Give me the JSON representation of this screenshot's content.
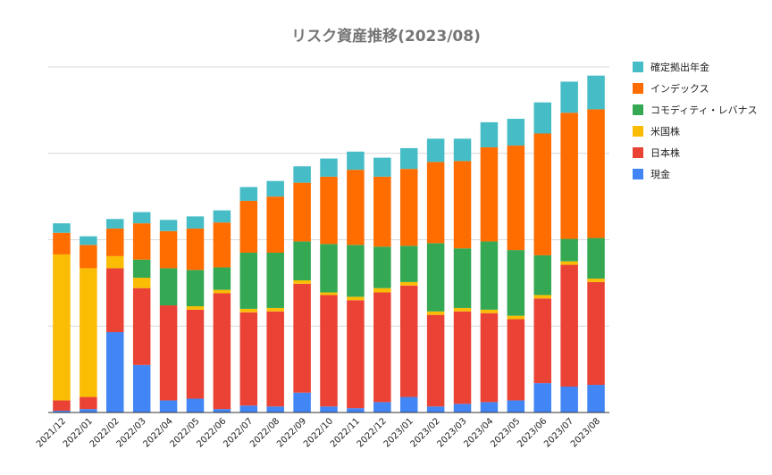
{
  "colors": {
    "確定拠出年金": "#46bdc6",
    "インデックス": "#ff6d01",
    "コモディティ・レバナス": "#34a853",
    "米国株": "#fbbc04",
    "日本株": "#ea4335",
    "現金": "#4285f4"
  },
  "chart_data": {
    "type": "bar",
    "stacked": true,
    "title": "リスク資産推移(2023/08)",
    "xlabel": "",
    "ylabel": "",
    "ylim": [
      0,
      400
    ],
    "y_gridlines": [
      100,
      200,
      300,
      400
    ],
    "y_tick_labels_shown": false,
    "grid": true,
    "legend_position": "right",
    "categories": [
      "2021/12",
      "2022/01",
      "2022/02",
      "2022/03",
      "2022/04",
      "2022/05",
      "2022/06",
      "2022/07",
      "2022/08",
      "2022/09",
      "2022/10",
      "2022/11",
      "2022/12",
      "2023/01",
      "2023/02",
      "2023/03",
      "2023/04",
      "2023/05",
      "2023/06",
      "2023/07",
      "2023/08"
    ],
    "series": [
      {
        "name": "現金",
        "values": [
          2,
          4,
          93,
          55,
          14,
          16,
          4,
          8,
          7,
          23,
          7,
          5,
          12,
          18,
          7,
          10,
          12,
          14,
          34,
          30,
          32
        ]
      },
      {
        "name": "日本株",
        "values": [
          12,
          14,
          74,
          89,
          110,
          103,
          134,
          108,
          110,
          126,
          129,
          125,
          127,
          129,
          106,
          107,
          103,
          94,
          98,
          141,
          119
        ]
      },
      {
        "name": "米国株",
        "values": [
          169,
          149,
          14,
          12,
          0,
          4,
          4,
          4,
          4,
          4,
          3,
          4,
          5,
          4,
          4,
          4,
          4,
          4,
          4,
          4,
          4
        ]
      },
      {
        "name": "コモディティ・レバナス",
        "values": [
          0,
          0,
          0,
          21,
          43,
          42,
          26,
          65,
          64,
          45,
          56,
          60,
          48,
          42,
          79,
          69,
          79,
          76,
          46,
          26,
          47
        ]
      },
      {
        "name": "インデックス",
        "values": [
          25,
          27,
          32,
          42,
          43,
          48,
          52,
          60,
          65,
          68,
          78,
          87,
          81,
          89,
          94,
          101,
          109,
          121,
          141,
          146,
          149
        ]
      },
      {
        "name": "確定拠出年金",
        "values": [
          11,
          10,
          11,
          13,
          13,
          14,
          14,
          16,
          18,
          19,
          21,
          21,
          22,
          24,
          27,
          26,
          29,
          31,
          36,
          36,
          39
        ]
      }
    ]
  }
}
